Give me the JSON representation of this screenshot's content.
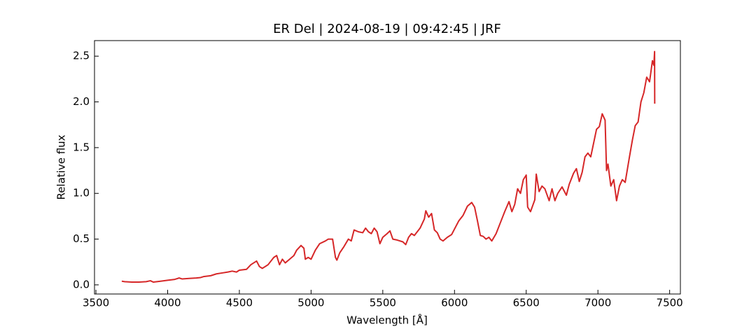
{
  "chart_data": {
    "type": "line",
    "title": "ER Del | 2024-08-19 | 09:42:45 | JRF",
    "x_label": "Wavelength [Å]",
    "y_label": "Relative flux",
    "x": [
      3680,
      3700,
      3750,
      3800,
      3850,
      3880,
      3900,
      3950,
      4000,
      4050,
      4080,
      4100,
      4150,
      4200,
      4230,
      4250,
      4300,
      4340,
      4380,
      4420,
      4450,
      4480,
      4500,
      4550,
      4580,
      4600,
      4620,
      4640,
      4660,
      4700,
      4740,
      4760,
      4780,
      4800,
      4820,
      4850,
      4880,
      4900,
      4930,
      4950,
      4960,
      4980,
      5000,
      5030,
      5060,
      5100,
      5120,
      5150,
      5170,
      5180,
      5200,
      5230,
      5260,
      5280,
      5300,
      5330,
      5360,
      5380,
      5400,
      5420,
      5440,
      5460,
      5480,
      5500,
      5530,
      5550,
      5570,
      5600,
      5640,
      5660,
      5680,
      5700,
      5720,
      5740,
      5760,
      5790,
      5800,
      5820,
      5840,
      5860,
      5880,
      5900,
      5920,
      5950,
      5980,
      6000,
      6030,
      6060,
      6090,
      6120,
      6140,
      6160,
      6180,
      6200,
      6220,
      6240,
      6260,
      6290,
      6320,
      6350,
      6380,
      6400,
      6420,
      6440,
      6460,
      6480,
      6500,
      6510,
      6530,
      6560,
      6570,
      6590,
      6610,
      6630,
      6660,
      6680,
      6700,
      6720,
      6750,
      6780,
      6800,
      6830,
      6850,
      6870,
      6890,
      6910,
      6930,
      6950,
      6970,
      6990,
      7010,
      7030,
      7050,
      7060,
      7070,
      7090,
      7110,
      7130,
      7150,
      7170,
      7190,
      7220,
      7240,
      7260,
      7280,
      7300,
      7320,
      7340,
      7360,
      7380,
      7390,
      7395,
      7396
    ],
    "series": [
      {
        "name": "ER Del",
        "color": "#d62728",
        "values": [
          0.04,
          0.035,
          0.03,
          0.03,
          0.035,
          0.045,
          0.03,
          0.04,
          0.05,
          0.06,
          0.075,
          0.065,
          0.07,
          0.075,
          0.08,
          0.09,
          0.1,
          0.12,
          0.13,
          0.14,
          0.15,
          0.14,
          0.16,
          0.17,
          0.22,
          0.24,
          0.26,
          0.2,
          0.18,
          0.22,
          0.3,
          0.32,
          0.22,
          0.28,
          0.24,
          0.28,
          0.32,
          0.38,
          0.43,
          0.4,
          0.28,
          0.3,
          0.28,
          0.38,
          0.45,
          0.48,
          0.5,
          0.5,
          0.3,
          0.27,
          0.35,
          0.42,
          0.5,
          0.48,
          0.6,
          0.58,
          0.57,
          0.62,
          0.58,
          0.56,
          0.62,
          0.58,
          0.45,
          0.52,
          0.56,
          0.59,
          0.5,
          0.49,
          0.47,
          0.44,
          0.52,
          0.56,
          0.54,
          0.58,
          0.62,
          0.72,
          0.81,
          0.74,
          0.78,
          0.6,
          0.57,
          0.5,
          0.48,
          0.52,
          0.55,
          0.61,
          0.7,
          0.76,
          0.86,
          0.9,
          0.85,
          0.7,
          0.54,
          0.53,
          0.5,
          0.52,
          0.48,
          0.56,
          0.68,
          0.8,
          0.91,
          0.8,
          0.88,
          1.05,
          1.0,
          1.15,
          1.2,
          0.85,
          0.8,
          0.93,
          1.21,
          1.02,
          1.08,
          1.05,
          0.92,
          1.05,
          0.92,
          1.0,
          1.07,
          0.98,
          1.1,
          1.22,
          1.27,
          1.13,
          1.23,
          1.4,
          1.44,
          1.4,
          1.55,
          1.7,
          1.73,
          1.87,
          1.8,
          1.25,
          1.32,
          1.08,
          1.15,
          0.92,
          1.08,
          1.15,
          1.12,
          1.4,
          1.58,
          1.74,
          1.78,
          2.0,
          2.1,
          2.27,
          2.22,
          2.45,
          2.4,
          2.55,
          1.98
        ]
      }
    ],
    "xlim": [
      3490,
      7575
    ],
    "ylim": [
      -0.1,
      2.67
    ],
    "xticks": [
      3500,
      4000,
      4500,
      5000,
      5500,
      6000,
      6500,
      7000,
      7500
    ],
    "yticks": [
      {
        "value": 0,
        "label": "0.0"
      },
      0.5,
      {
        "value": 1,
        "label": "1.0"
      },
      1.5,
      {
        "value": 2,
        "label": "2.0"
      },
      2.5
    ]
  }
}
